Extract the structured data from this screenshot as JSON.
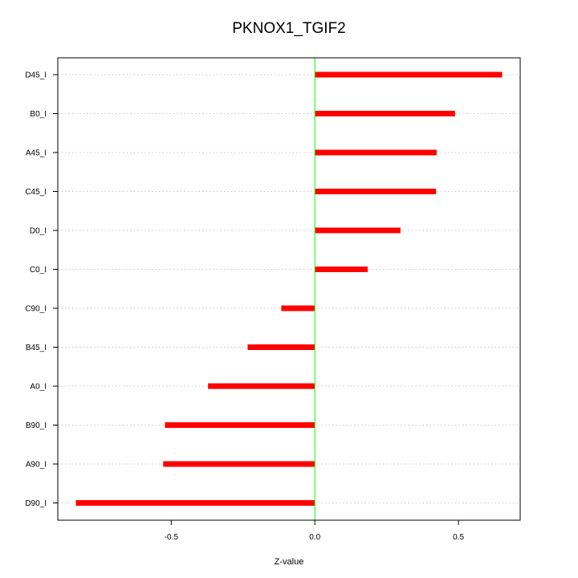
{
  "chart_data": {
    "type": "bar",
    "orientation": "horizontal",
    "title": "PKNOX1_TGIF2",
    "xlabel": "Z-value",
    "ylabel": "",
    "xlim": [
      -0.895,
      0.715
    ],
    "xticks": [
      -0.5,
      0.0,
      0.5
    ],
    "xtick_labels": [
      "-0.5",
      "0.0",
      "0.5"
    ],
    "grid": "horizontal dotted",
    "reference_line": 0,
    "colors": {
      "bar": "#ff0000",
      "reference_line": "#00ff00",
      "grid": "#c8c8c8",
      "axis": "#000000"
    },
    "categories": [
      "D45_I",
      "B0_I",
      "A45_I",
      "C45_I",
      "D0_I",
      "C0_I",
      "C90_I",
      "B45_I",
      "A0_I",
      "B90_I",
      "A90_I",
      "D90_I"
    ],
    "values": [
      0.652,
      0.488,
      0.424,
      0.422,
      0.298,
      0.184,
      -0.117,
      -0.234,
      -0.372,
      -0.522,
      -0.528,
      -0.832
    ]
  }
}
